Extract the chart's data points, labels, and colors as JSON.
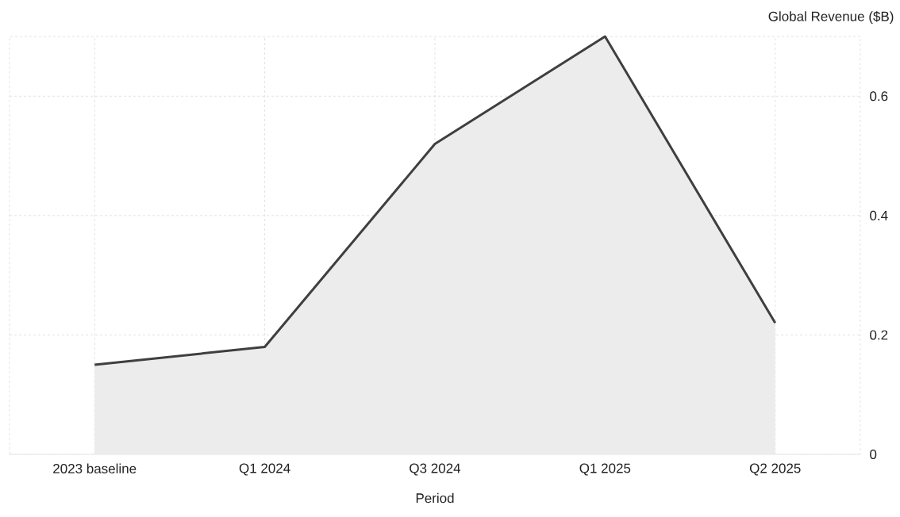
{
  "chart_data": {
    "type": "area",
    "xlabel": "Period",
    "ylabel": "Global Revenue ($B)",
    "categories": [
      "2023 baseline",
      "Q1 2024",
      "Q3 2024",
      "Q1 2025",
      "Q2 2025"
    ],
    "series": [
      {
        "color": "#3f3f3f",
        "values": [
          0.15,
          0.18,
          0.52,
          0.7,
          0.22
        ]
      }
    ],
    "ylim": [
      0,
      0.7
    ],
    "yticks": [
      0,
      0.2,
      0.4,
      0.6
    ],
    "grid": true
  }
}
